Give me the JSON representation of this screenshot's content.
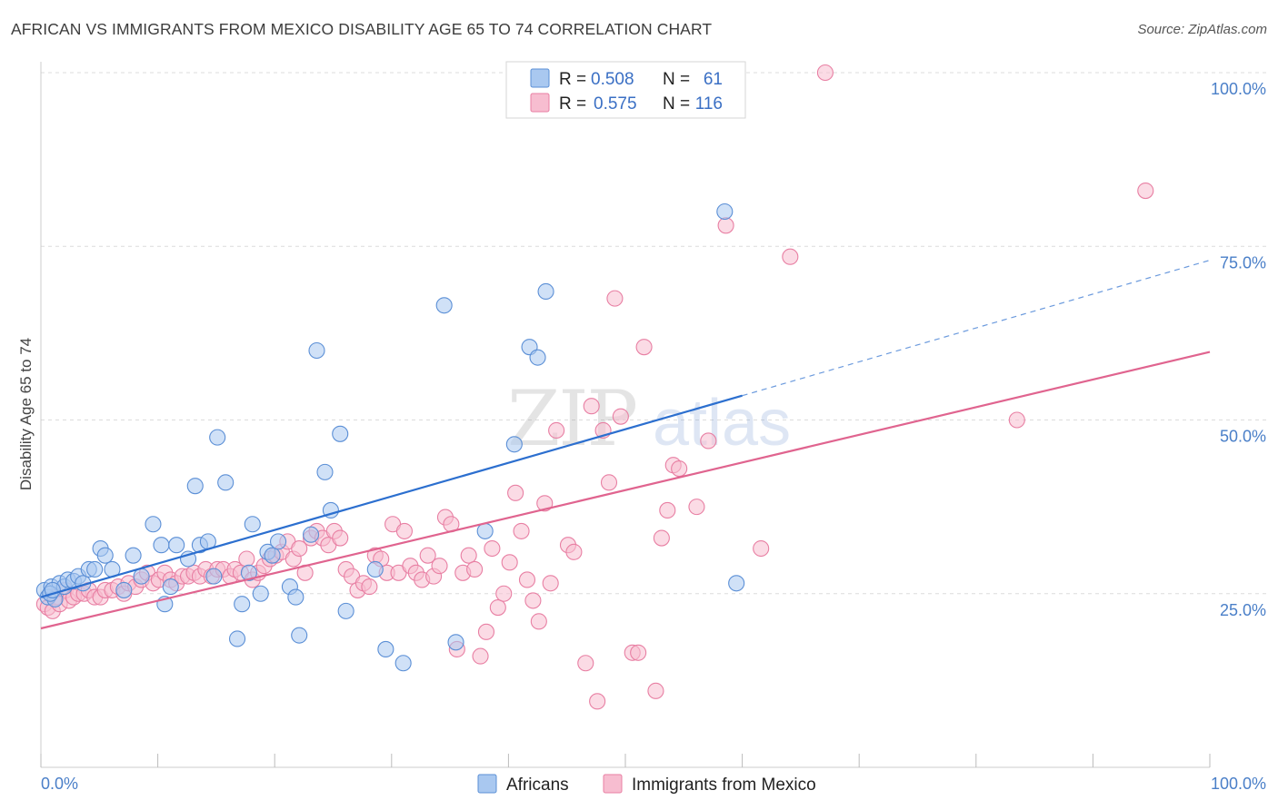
{
  "title": "AFRICAN VS IMMIGRANTS FROM MEXICO DISABILITY AGE 65 TO 74 CORRELATION CHART",
  "source": "Source: ZipAtlas.com",
  "watermark": "ZIPatlas",
  "legend": {
    "r_label": "R =",
    "n_label": "N =",
    "rows": [
      {
        "r": "0.508",
        "n": "61"
      },
      {
        "r": "0.575",
        "n": "116"
      }
    ]
  },
  "colors": {
    "africans_fill": "#a9c8f0",
    "africans_stroke": "#5b8fd6",
    "africans_line": "#2c6fcf",
    "mexico_fill": "#f7bdd0",
    "mexico_stroke": "#e87fa3",
    "mexico_line": "#e0648f",
    "tick_text": "#4a7fc8"
  },
  "chart_data": {
    "type": "scatter",
    "title": "AFRICAN VS IMMIGRANTS FROM MEXICO DISABILITY AGE 65 TO 74 CORRELATION CHART",
    "xlabel": "",
    "ylabel": "Disability Age 65 to 74",
    "xlim": [
      0,
      100
    ],
    "ylim": [
      0,
      100
    ],
    "x_tick_labels": [
      "0.0%",
      "100.0%"
    ],
    "y_tick_labels": [
      "25.0%",
      "50.0%",
      "75.0%",
      "100.0%"
    ],
    "y_tick_values": [
      25,
      50,
      75,
      100
    ],
    "grid": true,
    "legend_position": "top-center",
    "series": [
      {
        "name": "Africans",
        "r": 0.508,
        "n": 61,
        "trend": {
          "x0": 0,
          "y0": 24.5,
          "x1": 60,
          "y1": 53.5,
          "dashed_to_x": 100,
          "dashed_to_y": 73.0
        },
        "points": [
          [
            0.3,
            25.5
          ],
          [
            0.6,
            24.5
          ],
          [
            0.9,
            26
          ],
          [
            1.2,
            24.2
          ],
          [
            1.6,
            26.5
          ],
          [
            2.0,
            26
          ],
          [
            2.3,
            27
          ],
          [
            2.8,
            26.8
          ],
          [
            3.2,
            27.5
          ],
          [
            3.6,
            26.5
          ],
          [
            4.1,
            28.5
          ],
          [
            4.6,
            28.5
          ],
          [
            5.1,
            31.5
          ],
          [
            5.5,
            30.5
          ],
          [
            6.1,
            28.5
          ],
          [
            7.1,
            25.5
          ],
          [
            7.9,
            30.5
          ],
          [
            8.6,
            27.5
          ],
          [
            9.6,
            35
          ],
          [
            10.3,
            32
          ],
          [
            10.6,
            23.5
          ],
          [
            11.1,
            26
          ],
          [
            11.6,
            32
          ],
          [
            12.6,
            30
          ],
          [
            13.2,
            40.5
          ],
          [
            13.6,
            32
          ],
          [
            14.3,
            32.5
          ],
          [
            14.8,
            27.5
          ],
          [
            15.1,
            47.5
          ],
          [
            15.8,
            41
          ],
          [
            16.8,
            18.5
          ],
          [
            17.2,
            23.5
          ],
          [
            17.8,
            28
          ],
          [
            18.1,
            35
          ],
          [
            18.8,
            25
          ],
          [
            19.4,
            31
          ],
          [
            19.8,
            30.5
          ],
          [
            20.3,
            32.5
          ],
          [
            21.3,
            26
          ],
          [
            21.8,
            24.5
          ],
          [
            22.1,
            19
          ],
          [
            23.1,
            33.5
          ],
          [
            23.6,
            60
          ],
          [
            24.3,
            42.5
          ],
          [
            24.8,
            37
          ],
          [
            25.6,
            48
          ],
          [
            26.1,
            22.5
          ],
          [
            28.6,
            28.5
          ],
          [
            29.5,
            17
          ],
          [
            31.0,
            15
          ],
          [
            34.5,
            66.5
          ],
          [
            35.5,
            18
          ],
          [
            38.0,
            34
          ],
          [
            40.5,
            46.5
          ],
          [
            41.8,
            60.5
          ],
          [
            42.5,
            59
          ],
          [
            43.2,
            68.5
          ],
          [
            58.5,
            80
          ],
          [
            59.5,
            26.5
          ],
          [
            0.8,
            25
          ],
          [
            1.0,
            25.5
          ]
        ]
      },
      {
        "name": "Immigrants from Mexico",
        "r": 0.575,
        "n": 116,
        "trend": {
          "x0": 0,
          "y0": 20.0,
          "x1": 100,
          "y1": 59.8
        },
        "points": [
          [
            0.3,
            23.5
          ],
          [
            0.6,
            23
          ],
          [
            1.0,
            22.5
          ],
          [
            1.3,
            24.5
          ],
          [
            1.6,
            23.5
          ],
          [
            2.1,
            25.5
          ],
          [
            2.4,
            24
          ],
          [
            2.8,
            24.5
          ],
          [
            3.2,
            25
          ],
          [
            3.7,
            25
          ],
          [
            4.1,
            25.5
          ],
          [
            4.6,
            24.5
          ],
          [
            5.1,
            24.5
          ],
          [
            5.5,
            25.5
          ],
          [
            6.1,
            25.5
          ],
          [
            6.6,
            26
          ],
          [
            7.1,
            25
          ],
          [
            7.5,
            26.5
          ],
          [
            8.1,
            26
          ],
          [
            8.6,
            27
          ],
          [
            9.1,
            28
          ],
          [
            9.6,
            26.5
          ],
          [
            10.1,
            27
          ],
          [
            10.6,
            28
          ],
          [
            11.1,
            27
          ],
          [
            11.6,
            26.5
          ],
          [
            12.1,
            27.5
          ],
          [
            12.6,
            27.5
          ],
          [
            13.1,
            28
          ],
          [
            13.6,
            27.5
          ],
          [
            14.1,
            28.5
          ],
          [
            14.6,
            27.5
          ],
          [
            15.1,
            28.5
          ],
          [
            15.6,
            28.5
          ],
          [
            16.2,
            27.5
          ],
          [
            16.6,
            28.5
          ],
          [
            17.1,
            28
          ],
          [
            17.6,
            30
          ],
          [
            18.1,
            27
          ],
          [
            18.6,
            28
          ],
          [
            19.1,
            29
          ],
          [
            19.6,
            30
          ],
          [
            20.1,
            30.5
          ],
          [
            20.6,
            31
          ],
          [
            21.1,
            32.5
          ],
          [
            21.6,
            30
          ],
          [
            22.1,
            31.5
          ],
          [
            22.6,
            28
          ],
          [
            23.1,
            33
          ],
          [
            23.6,
            34
          ],
          [
            24.1,
            33
          ],
          [
            24.6,
            32
          ],
          [
            25.1,
            34
          ],
          [
            25.6,
            33
          ],
          [
            26.1,
            28.5
          ],
          [
            26.6,
            27.5
          ],
          [
            27.1,
            25.5
          ],
          [
            27.6,
            26.5
          ],
          [
            28.1,
            26
          ],
          [
            28.6,
            30.5
          ],
          [
            29.1,
            30
          ],
          [
            29.6,
            28
          ],
          [
            30.1,
            35
          ],
          [
            30.6,
            28
          ],
          [
            31.1,
            34
          ],
          [
            31.6,
            29
          ],
          [
            32.1,
            28
          ],
          [
            32.6,
            27
          ],
          [
            33.1,
            30.5
          ],
          [
            33.6,
            27.5
          ],
          [
            34.1,
            29
          ],
          [
            34.6,
            36
          ],
          [
            35.1,
            35
          ],
          [
            35.6,
            17
          ],
          [
            36.1,
            28
          ],
          [
            36.6,
            30.5
          ],
          [
            37.1,
            28.5
          ],
          [
            37.6,
            16
          ],
          [
            38.1,
            19.5
          ],
          [
            38.6,
            31.5
          ],
          [
            39.1,
            23
          ],
          [
            39.6,
            25
          ],
          [
            40.1,
            29.5
          ],
          [
            40.6,
            39.5
          ],
          [
            41.1,
            34
          ],
          [
            41.6,
            27
          ],
          [
            42.1,
            24
          ],
          [
            42.6,
            21
          ],
          [
            43.1,
            38
          ],
          [
            43.6,
            26.5
          ],
          [
            44.1,
            48.5
          ],
          [
            45.1,
            32
          ],
          [
            45.6,
            31
          ],
          [
            46.6,
            15
          ],
          [
            47.1,
            52
          ],
          [
            47.6,
            9.5
          ],
          [
            48.1,
            48.5
          ],
          [
            48.6,
            41
          ],
          [
            49.1,
            67.5
          ],
          [
            49.6,
            50.5
          ],
          [
            50.6,
            16.5
          ],
          [
            51.1,
            16.5
          ],
          [
            51.6,
            60.5
          ],
          [
            52.6,
            11
          ],
          [
            53.1,
            33
          ],
          [
            53.6,
            37
          ],
          [
            54.1,
            43.5
          ],
          [
            54.6,
            43
          ],
          [
            56.1,
            37.5
          ],
          [
            57.1,
            47
          ],
          [
            58.6,
            78
          ],
          [
            61.6,
            31.5
          ],
          [
            64.1,
            73.5
          ],
          [
            67.1,
            100
          ],
          [
            83.5,
            50
          ],
          [
            94.5,
            83
          ]
        ]
      }
    ]
  },
  "bottom_legend": [
    {
      "label": "Africans"
    },
    {
      "label": "Immigrants from Mexico"
    }
  ]
}
